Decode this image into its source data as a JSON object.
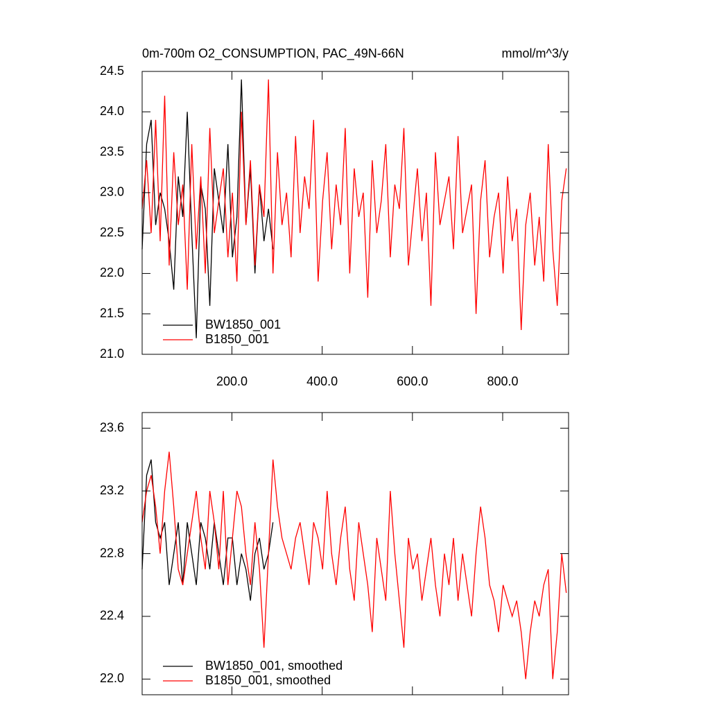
{
  "chart_data": [
    {
      "type": "line",
      "title": "0m-700m O2_CONSUMPTION, PAC_49N-66N",
      "units": "mmol/m^3/y",
      "xlim": [
        1,
        946
      ],
      "ylim": [
        21.0,
        24.5
      ],
      "xticks": [
        {
          "value": 200,
          "label": "200.0"
        },
        {
          "value": 400,
          "label": "400.0"
        },
        {
          "value": 600,
          "label": "600.0"
        },
        {
          "value": 800,
          "label": "800.0"
        }
      ],
      "yticks": [
        {
          "value": 21,
          "label": "21.0"
        },
        21.5,
        {
          "value": 22,
          "label": "22.0"
        },
        22.5,
        {
          "value": 23,
          "label": "23.0"
        },
        23.5,
        {
          "value": 24,
          "label": "24.0"
        },
        24.5
      ],
      "series": [
        {
          "name": "BW1850_001",
          "color": "#000000",
          "x": [
            1,
            11,
            21,
            31,
            41,
            51,
            61,
            71,
            81,
            91,
            101,
            111,
            121,
            131,
            141,
            151,
            161,
            171,
            181,
            191,
            201,
            211,
            221,
            231,
            241,
            251,
            261,
            271,
            281,
            291
          ],
          "values": [
            22.3,
            23.6,
            23.9,
            22.6,
            23.0,
            22.8,
            22.4,
            21.8,
            23.2,
            22.7,
            24.0,
            22.5,
            21.2,
            23.1,
            22.8,
            21.6,
            23.3,
            22.9,
            22.5,
            23.6,
            22.2,
            22.7,
            24.4,
            22.6,
            23.3,
            22.0,
            23.1,
            22.4,
            22.8,
            22.3
          ]
        },
        {
          "name": "B1850_001",
          "color": "#ff0000",
          "x": [
            1,
            11,
            21,
            31,
            41,
            51,
            61,
            71,
            81,
            91,
            101,
            111,
            121,
            131,
            141,
            151,
            161,
            171,
            181,
            191,
            201,
            211,
            221,
            231,
            241,
            251,
            261,
            271,
            281,
            291,
            301,
            311,
            321,
            331,
            341,
            351,
            361,
            371,
            381,
            391,
            401,
            411,
            421,
            431,
            441,
            451,
            461,
            471,
            481,
            491,
            501,
            511,
            521,
            531,
            541,
            551,
            561,
            571,
            581,
            591,
            601,
            611,
            621,
            631,
            641,
            651,
            661,
            671,
            681,
            691,
            701,
            711,
            721,
            731,
            741,
            751,
            761,
            771,
            781,
            791,
            801,
            811,
            821,
            831,
            841,
            851,
            861,
            871,
            881,
            891,
            901,
            911,
            921,
            931,
            941
          ],
          "values": [
            22.8,
            23.4,
            22.5,
            23.9,
            22.4,
            24.2,
            22.1,
            23.5,
            22.6,
            23.1,
            21.8,
            23.6,
            22.3,
            23.2,
            22.0,
            23.8,
            22.5,
            22.9,
            23.3,
            22.2,
            23.0,
            21.9,
            24.0,
            22.6,
            23.4,
            22.1,
            23.1,
            22.7,
            24.4,
            22.0,
            23.5,
            22.6,
            23.0,
            22.2,
            23.7,
            22.5,
            23.2,
            22.8,
            23.9,
            21.9,
            22.9,
            23.5,
            22.3,
            23.1,
            22.6,
            23.8,
            22.0,
            23.3,
            22.7,
            23.0,
            21.7,
            23.4,
            22.5,
            22.9,
            23.6,
            22.2,
            23.1,
            22.8,
            23.8,
            22.1,
            22.7,
            23.3,
            22.4,
            23.0,
            21.6,
            23.5,
            22.6,
            22.9,
            23.2,
            22.3,
            23.7,
            22.5,
            22.8,
            23.1,
            21.5,
            22.9,
            23.4,
            22.2,
            22.7,
            23.0,
            22.0,
            23.2,
            22.4,
            22.8,
            21.3,
            22.6,
            23.0,
            22.1,
            22.7,
            21.9,
            23.6,
            22.3,
            21.6,
            22.9,
            23.3
          ]
        }
      ]
    },
    {
      "type": "line",
      "xlim": [
        1,
        946
      ],
      "ylim": [
        21.9,
        23.7
      ],
      "xticks": [
        200,
        400,
        600,
        800
      ],
      "yticks": [
        {
          "value": 22,
          "label": "22.0"
        },
        22.4,
        22.8,
        23.2,
        23.6
      ],
      "series": [
        {
          "name": "BW1850_001, smoothed",
          "color": "#000000",
          "x": [
            1,
            11,
            21,
            31,
            41,
            51,
            61,
            71,
            81,
            91,
            101,
            111,
            121,
            131,
            141,
            151,
            161,
            171,
            181,
            191,
            201,
            211,
            221,
            231,
            241,
            251,
            261,
            271,
            281,
            291
          ],
          "values": [
            22.7,
            23.3,
            23.4,
            23.0,
            22.9,
            23.0,
            22.6,
            22.8,
            23.0,
            22.6,
            23.0,
            22.8,
            22.6,
            23.0,
            22.9,
            22.7,
            23.0,
            22.8,
            22.6,
            22.9,
            22.9,
            22.6,
            22.8,
            22.7,
            22.5,
            22.8,
            22.9,
            22.7,
            22.8,
            23.0
          ]
        },
        {
          "name": "B1850_001, smoothed",
          "color": "#ff0000",
          "x": [
            1,
            11,
            21,
            31,
            41,
            51,
            61,
            71,
            81,
            91,
            101,
            111,
            121,
            131,
            141,
            151,
            161,
            171,
            181,
            191,
            201,
            211,
            221,
            231,
            241,
            251,
            261,
            271,
            281,
            291,
            301,
            311,
            321,
            331,
            341,
            351,
            361,
            371,
            381,
            391,
            401,
            411,
            421,
            431,
            441,
            451,
            461,
            471,
            481,
            491,
            501,
            511,
            521,
            531,
            541,
            551,
            561,
            571,
            581,
            591,
            601,
            611,
            621,
            631,
            641,
            651,
            661,
            671,
            681,
            691,
            701,
            711,
            721,
            731,
            741,
            751,
            761,
            771,
            781,
            791,
            801,
            811,
            821,
            831,
            841,
            851,
            861,
            871,
            881,
            891,
            901,
            911,
            921,
            931,
            941
          ],
          "values": [
            23.0,
            23.2,
            23.3,
            23.1,
            22.8,
            23.2,
            23.45,
            23.1,
            22.7,
            22.6,
            22.8,
            23.0,
            23.2,
            22.9,
            22.7,
            23.2,
            23.0,
            22.7,
            23.2,
            22.6,
            22.9,
            23.2,
            23.1,
            22.8,
            22.6,
            23.0,
            22.7,
            22.2,
            22.8,
            23.4,
            23.1,
            22.9,
            22.8,
            22.7,
            22.9,
            23.0,
            22.8,
            22.6,
            23.0,
            22.9,
            22.7,
            23.2,
            22.8,
            22.6,
            22.9,
            23.1,
            22.7,
            22.5,
            23.0,
            22.8,
            22.6,
            22.3,
            22.9,
            22.7,
            22.5,
            23.2,
            22.8,
            22.5,
            22.2,
            22.9,
            22.7,
            22.8,
            22.5,
            22.7,
            22.9,
            22.6,
            22.4,
            22.8,
            22.6,
            22.9,
            22.5,
            22.8,
            22.6,
            22.4,
            22.8,
            23.1,
            22.9,
            22.6,
            22.5,
            22.3,
            22.6,
            22.5,
            22.4,
            22.5,
            22.3,
            22.0,
            22.3,
            22.5,
            22.4,
            22.6,
            22.7,
            22.0,
            22.3,
            22.8,
            22.55
          ]
        }
      ]
    }
  ]
}
